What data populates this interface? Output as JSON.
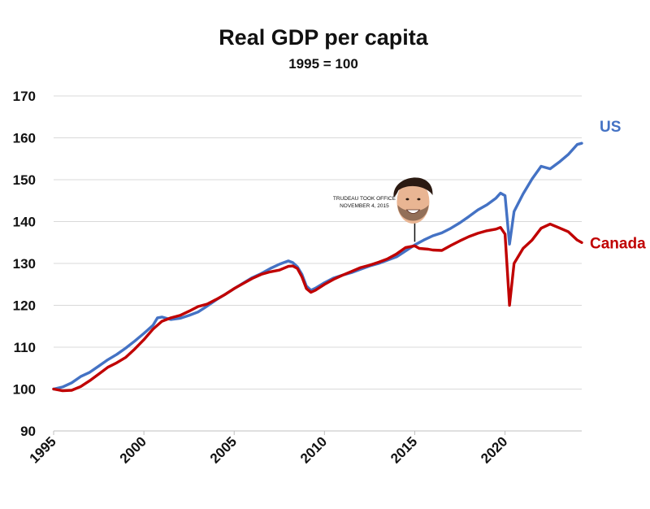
{
  "chart_data": {
    "type": "line",
    "title": "Real GDP per capita",
    "subtitle": "1995 = 100",
    "xlabel": "",
    "ylabel": "",
    "xlim": [
      1995,
      2024.25
    ],
    "ylim": [
      90,
      170
    ],
    "yticks": [
      "170",
      "160",
      "150",
      "140",
      "130",
      "120",
      "110",
      "100",
      "90"
    ],
    "ytick_values": [
      170,
      160,
      150,
      140,
      130,
      120,
      110,
      100,
      90
    ],
    "xticks": [
      "1995",
      "2000",
      "2005",
      "2010",
      "2015",
      "2020"
    ],
    "xtick_values": [
      1995,
      2000,
      2005,
      2010,
      2015,
      2020
    ],
    "grid": true,
    "series": [
      {
        "name": "US",
        "color": "#4472c4",
        "points": [
          [
            1995.0,
            100.0
          ],
          [
            1995.5,
            100.5
          ],
          [
            1996.0,
            101.5
          ],
          [
            1996.5,
            103.0
          ],
          [
            1997.0,
            104.0
          ],
          [
            1997.5,
            105.5
          ],
          [
            1998.0,
            107.0
          ],
          [
            1998.5,
            108.3
          ],
          [
            1999.0,
            109.8
          ],
          [
            1999.5,
            111.5
          ],
          [
            2000.0,
            113.3
          ],
          [
            2000.5,
            115.2
          ],
          [
            2000.75,
            117.0
          ],
          [
            2001.0,
            117.2
          ],
          [
            2001.5,
            116.6
          ],
          [
            2002.0,
            116.9
          ],
          [
            2002.5,
            117.6
          ],
          [
            2003.0,
            118.4
          ],
          [
            2003.5,
            119.8
          ],
          [
            2004.0,
            121.3
          ],
          [
            2004.5,
            122.6
          ],
          [
            2005.0,
            124.0
          ],
          [
            2005.5,
            125.3
          ],
          [
            2006.0,
            126.6
          ],
          [
            2006.5,
            127.6
          ],
          [
            2007.0,
            128.8
          ],
          [
            2007.5,
            129.8
          ],
          [
            2008.0,
            130.6
          ],
          [
            2008.25,
            130.2
          ],
          [
            2008.5,
            129.2
          ],
          [
            2008.75,
            127.4
          ],
          [
            2009.0,
            124.6
          ],
          [
            2009.25,
            123.6
          ],
          [
            2009.5,
            124.1
          ],
          [
            2010.0,
            125.4
          ],
          [
            2010.5,
            126.5
          ],
          [
            2011.0,
            127.2
          ],
          [
            2011.5,
            127.8
          ],
          [
            2012.0,
            128.6
          ],
          [
            2012.5,
            129.4
          ],
          [
            2013.0,
            130.0
          ],
          [
            2013.5,
            130.8
          ],
          [
            2014.0,
            131.6
          ],
          [
            2014.5,
            133.0
          ],
          [
            2015.0,
            134.4
          ],
          [
            2015.5,
            135.6
          ],
          [
            2016.0,
            136.6
          ],
          [
            2016.5,
            137.3
          ],
          [
            2017.0,
            138.4
          ],
          [
            2017.5,
            139.7
          ],
          [
            2018.0,
            141.2
          ],
          [
            2018.5,
            142.8
          ],
          [
            2019.0,
            144.0
          ],
          [
            2019.5,
            145.6
          ],
          [
            2019.75,
            146.8
          ],
          [
            2020.0,
            146.2
          ],
          [
            2020.25,
            134.6
          ],
          [
            2020.5,
            142.4
          ],
          [
            2021.0,
            146.6
          ],
          [
            2021.5,
            150.2
          ],
          [
            2022.0,
            153.2
          ],
          [
            2022.5,
            152.6
          ],
          [
            2023.0,
            154.2
          ],
          [
            2023.5,
            156.0
          ],
          [
            2024.0,
            158.4
          ],
          [
            2024.25,
            158.7
          ]
        ]
      },
      {
        "name": "Canada",
        "color": "#c00000",
        "points": [
          [
            1995.0,
            100.0
          ],
          [
            1995.5,
            99.6
          ],
          [
            1996.0,
            99.7
          ],
          [
            1996.5,
            100.6
          ],
          [
            1997.0,
            102.0
          ],
          [
            1997.5,
            103.6
          ],
          [
            1998.0,
            105.2
          ],
          [
            1998.5,
            106.3
          ],
          [
            1999.0,
            107.6
          ],
          [
            1999.5,
            109.6
          ],
          [
            2000.0,
            111.8
          ],
          [
            2000.5,
            114.3
          ],
          [
            2001.0,
            116.2
          ],
          [
            2001.5,
            117.0
          ],
          [
            2002.0,
            117.6
          ],
          [
            2002.5,
            118.6
          ],
          [
            2003.0,
            119.7
          ],
          [
            2003.5,
            120.3
          ],
          [
            2004.0,
            121.4
          ],
          [
            2004.5,
            122.6
          ],
          [
            2005.0,
            124.0
          ],
          [
            2005.5,
            125.2
          ],
          [
            2006.0,
            126.4
          ],
          [
            2006.5,
            127.4
          ],
          [
            2007.0,
            128.0
          ],
          [
            2007.5,
            128.4
          ],
          [
            2008.0,
            129.3
          ],
          [
            2008.25,
            129.4
          ],
          [
            2008.5,
            128.8
          ],
          [
            2008.75,
            126.8
          ],
          [
            2009.0,
            124.0
          ],
          [
            2009.25,
            123.1
          ],
          [
            2009.5,
            123.6
          ],
          [
            2010.0,
            125.0
          ],
          [
            2010.5,
            126.2
          ],
          [
            2011.0,
            127.2
          ],
          [
            2011.5,
            128.1
          ],
          [
            2012.0,
            129.0
          ],
          [
            2012.5,
            129.6
          ],
          [
            2013.0,
            130.3
          ],
          [
            2013.5,
            131.1
          ],
          [
            2014.0,
            132.3
          ],
          [
            2014.5,
            133.8
          ],
          [
            2015.0,
            134.2
          ],
          [
            2015.25,
            133.6
          ],
          [
            2015.75,
            133.4
          ],
          [
            2016.0,
            133.2
          ],
          [
            2016.5,
            133.1
          ],
          [
            2017.0,
            134.3
          ],
          [
            2017.5,
            135.4
          ],
          [
            2018.0,
            136.4
          ],
          [
            2018.5,
            137.2
          ],
          [
            2019.0,
            137.8
          ],
          [
            2019.5,
            138.2
          ],
          [
            2019.75,
            138.6
          ],
          [
            2020.0,
            137.0
          ],
          [
            2020.25,
            120.0
          ],
          [
            2020.5,
            130.0
          ],
          [
            2021.0,
            133.6
          ],
          [
            2021.5,
            135.6
          ],
          [
            2022.0,
            138.4
          ],
          [
            2022.5,
            139.4
          ],
          [
            2023.0,
            138.5
          ],
          [
            2023.5,
            137.6
          ],
          [
            2024.0,
            135.6
          ],
          [
            2024.25,
            135.0
          ]
        ]
      }
    ],
    "annotation": {
      "x": 2015.0,
      "y": 134.4,
      "lines": [
        "TRUDEAU TOOK OFFICE",
        "NOVEMBER 4, 2015"
      ]
    }
  }
}
